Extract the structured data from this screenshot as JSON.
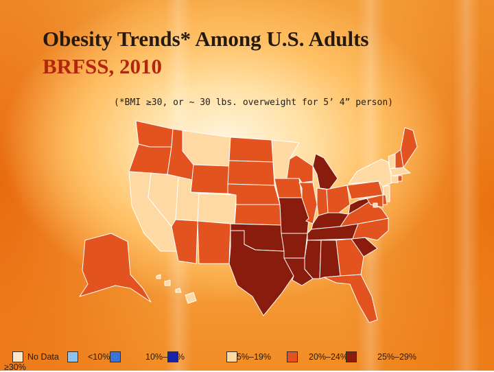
{
  "slide": {
    "title": "Obesity Trends* Among U.S. Adults",
    "subtitle": "BRFSS, 2010",
    "footnote": "(*BMI ≥30, or ~ 30 lbs. overweight for 5’ 4” person)"
  },
  "legend": {
    "items": [
      {
        "label": "No Data",
        "color": "#fbe7c8"
      },
      {
        "label": "<10%",
        "color": "#8fc3ee"
      },
      {
        "label": "10%–14%",
        "color": "#3a74d9"
      },
      {
        "label": "15%–19%",
        "color": "#1a22a8"
      },
      {
        "label": "20%–24%",
        "color": "#ffd9a3"
      },
      {
        "label": "25%–29%",
        "color": "#e35320"
      },
      {
        "label": "≥30%",
        "color": "#8a1c0e"
      }
    ]
  },
  "map_data": {
    "category_colors": {
      "20-24": "#ffd9a3",
      "25-29": "#e35320",
      "30+": "#8a1c0e"
    },
    "states": {
      "WA": "25-29",
      "OR": "25-29",
      "CA": "20-24",
      "NV": "20-24",
      "ID": "25-29",
      "MT": "20-24",
      "WY": "25-29",
      "UT": "20-24",
      "CO": "20-24",
      "AZ": "25-29",
      "NM": "25-29",
      "ND": "25-29",
      "SD": "25-29",
      "NE": "25-29",
      "KS": "25-29",
      "OK": "30+",
      "TX": "30+",
      "MN": "20-24",
      "IA": "25-29",
      "MO": "30+",
      "AR": "30+",
      "LA": "30+",
      "WI": "25-29",
      "IL": "25-29",
      "MI": "30+",
      "IN": "25-29",
      "OH": "25-29",
      "KY": "30+",
      "TN": "30+",
      "MS": "30+",
      "AL": "30+",
      "GA": "25-29",
      "FL": "25-29",
      "SC": "30+",
      "NC": "25-29",
      "VA": "25-29",
      "WV": "30+",
      "PA": "25-29",
      "NY": "20-24",
      "VT": "20-24",
      "NH": "25-29",
      "ME": "25-29",
      "MA": "20-24",
      "CT": "20-24",
      "RI": "25-29",
      "NJ": "20-24",
      "DE": "25-29",
      "MD": "25-29",
      "DC": "20-24",
      "AK": "25-29",
      "HI": "20-24"
    }
  }
}
